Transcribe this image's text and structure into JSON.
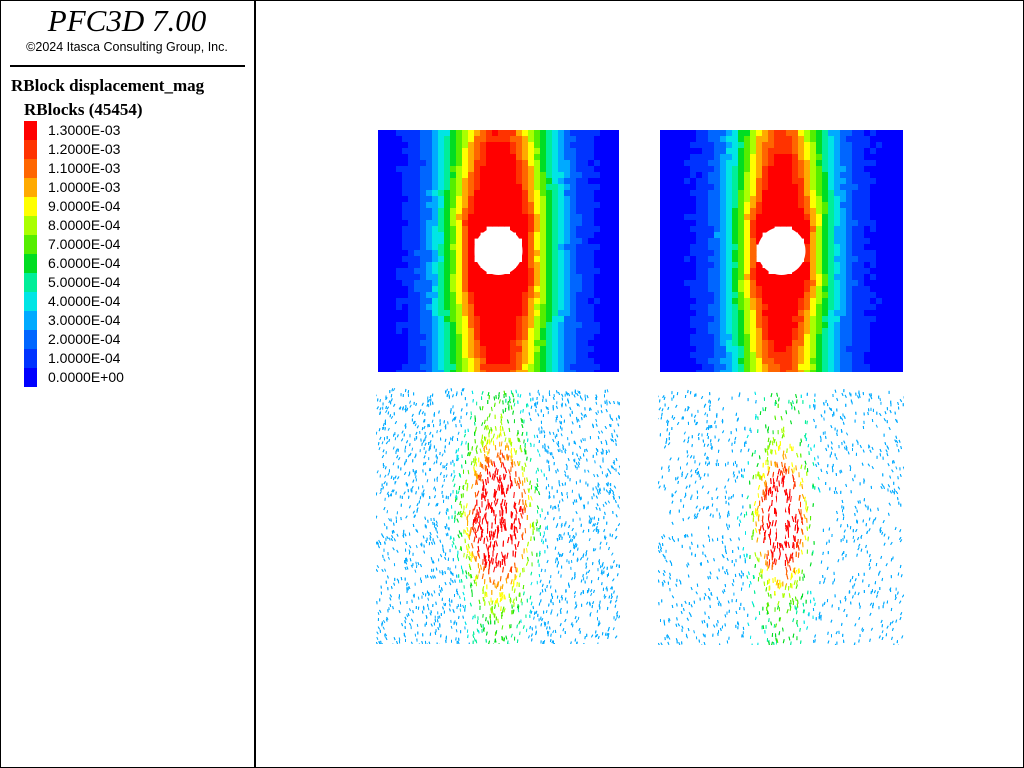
{
  "app": {
    "title": "PFC3D 7.00",
    "copyright": "©2024 Itasca Consulting Group, Inc."
  },
  "legend": {
    "plot_item_title": "RBlock displacement_mag",
    "heading": "RBlocks (45454)",
    "entries": [
      {
        "label": "1.3000E-03",
        "color": "#ff0000"
      },
      {
        "label": "1.2000E-03",
        "color": "#ff3300"
      },
      {
        "label": "1.1000E-03",
        "color": "#ff6600"
      },
      {
        "label": "1.0000E-03",
        "color": "#ffaa00"
      },
      {
        "label": "9.0000E-04",
        "color": "#ffff00"
      },
      {
        "label": "8.0000E-04",
        "color": "#aaff00"
      },
      {
        "label": "7.0000E-04",
        "color": "#55ee00"
      },
      {
        "label": "6.0000E-04",
        "color": "#00dd22"
      },
      {
        "label": "5.0000E-04",
        "color": "#00ee99"
      },
      {
        "label": "4.0000E-04",
        "color": "#00e5e5"
      },
      {
        "label": "3.0000E-04",
        "color": "#00aaff"
      },
      {
        "label": "2.0000E-04",
        "color": "#0066ff"
      },
      {
        "label": "1.0000E-04",
        "color": "#0033ff"
      },
      {
        "label": "0.0000E+00",
        "color": "#0000ff"
      }
    ]
  },
  "colors": {
    "background": "#ffffff",
    "border": "#000000",
    "hole": "#ffffff"
  }
}
